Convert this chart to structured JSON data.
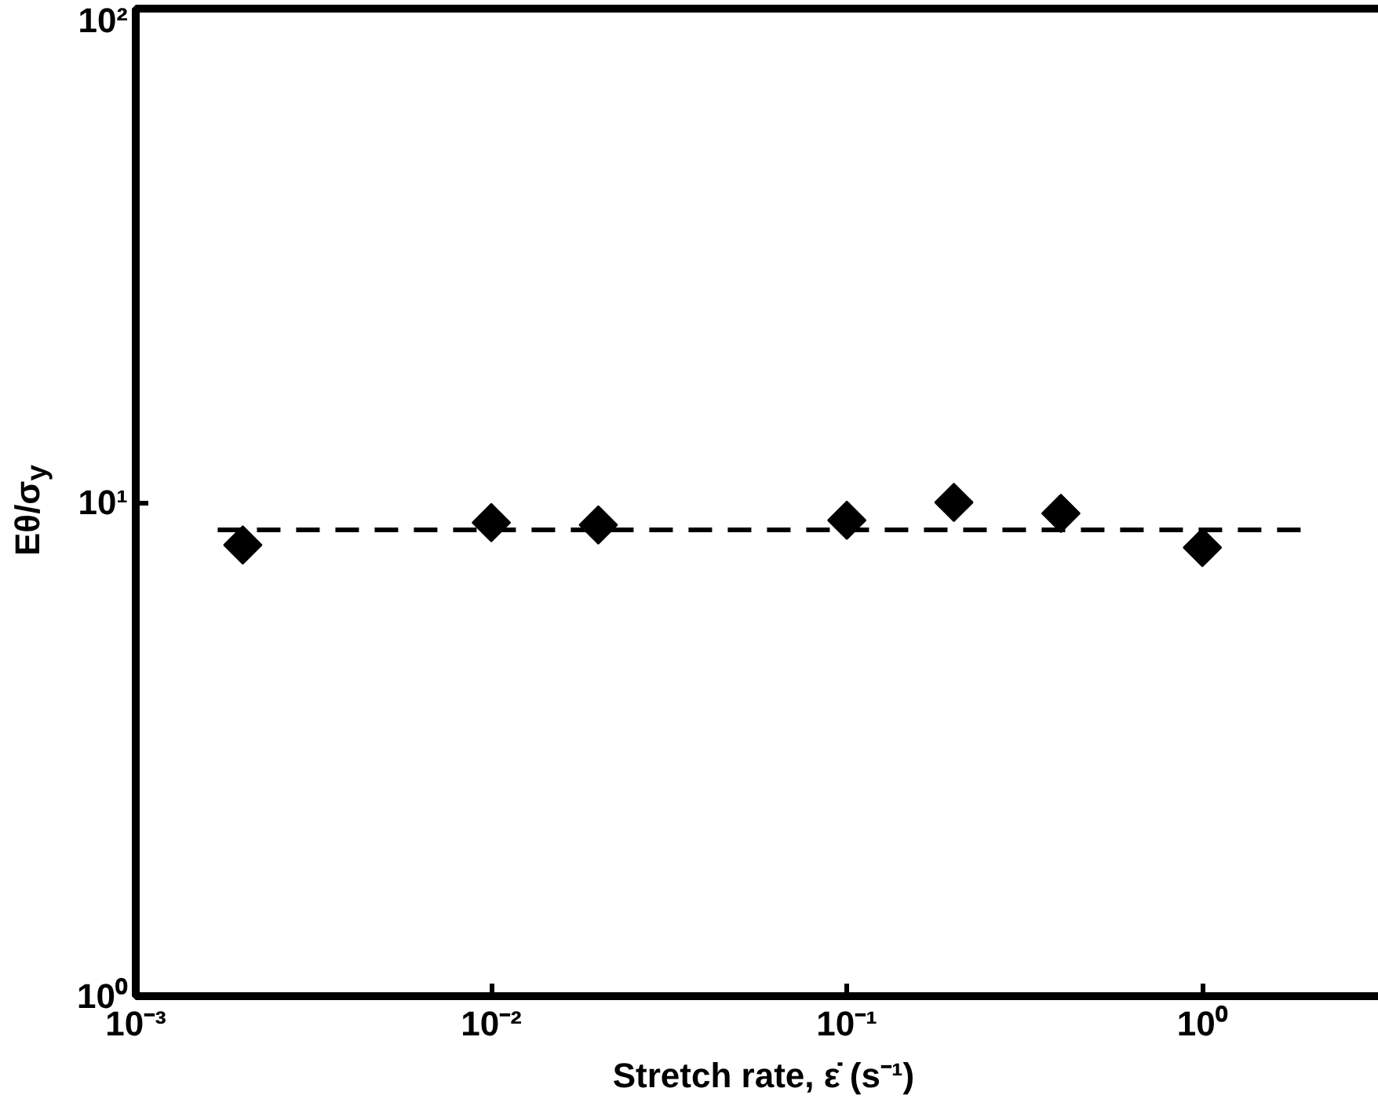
{
  "chart_data": {
    "type": "scatter",
    "xlabel": "Stretch rate, ε̇ (s⁻¹)",
    "ylabel": "Eθ/σ$_{y}$",
    "log": "xy",
    "marker": "diamond",
    "grid": false,
    "xlim": [
      0.001,
      3.4
    ],
    "ylim": [
      1,
      100
    ],
    "xticks": [
      {
        "value": 0.001,
        "label": "10⁻³"
      },
      {
        "value": 0.01,
        "label": "10⁻²"
      },
      {
        "value": 0.1,
        "label": "10⁻¹"
      },
      {
        "value": 1,
        "label": "10⁰"
      }
    ],
    "yticks": [
      {
        "value": 1,
        "label": "10⁰"
      },
      {
        "value": 10,
        "label": "10¹"
      },
      {
        "value": 100,
        "label": "10²"
      }
    ],
    "series": [
      {
        "type": "scatter",
        "color": "#000000",
        "x": [
          0.002,
          0.01,
          0.02,
          0.1,
          0.2,
          0.4,
          1.0
        ],
        "values": [
          8.2,
          9.1,
          9.0,
          9.2,
          10,
          9.5,
          8.1
        ]
      },
      {
        "type": "line",
        "color": "#000000",
        "line_style": "dashed",
        "marker": "none",
        "x": [
          0.0017,
          2.0
        ],
        "values": [
          8.8,
          8.8
        ]
      }
    ]
  }
}
